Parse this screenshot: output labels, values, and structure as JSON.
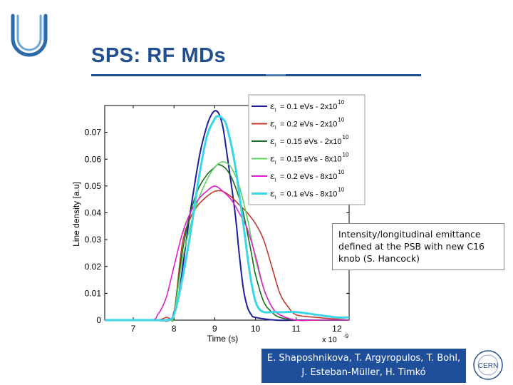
{
  "slide": {
    "title": "SPS: RF MDs",
    "note": "Intensity/longitudinal emittance defined at the PSB with new C16 knob (S. Hancock)",
    "authors_line1": "E. Shaposhnikova, T. Argyropulos, T. Bohl,",
    "authors_line2": "J. Esteban-Müller, H. Timkó",
    "logo_text": "CERN"
  },
  "chart_data": {
    "type": "line",
    "title": "",
    "xlabel": "Time (s)",
    "ylabel": "Line density [a.u]",
    "x_multiplier": "x 10",
    "x_multiplier_exp": "-9",
    "xlim": [
      6.3,
      12.3
    ],
    "ylim": [
      0,
      0.08
    ],
    "xticks": [
      "7",
      "8",
      "9",
      "10",
      "11",
      "12"
    ],
    "xtick_values": [
      7,
      8,
      9,
      10,
      11,
      12
    ],
    "yticks": [
      "0",
      "0.01",
      "0.02",
      "0.03",
      "0.04",
      "0.05",
      "0.06",
      "0.07"
    ],
    "ytick_values": [
      0,
      0.01,
      0.02,
      0.03,
      0.04,
      0.05,
      0.06,
      0.07
    ],
    "grid": false,
    "legend_position": "top-right",
    "series": [
      {
        "label_pre": "= 0.1 eVs - 2x10",
        "exp": "10",
        "color": "#1f1f9e",
        "x": [
          6.3,
          7.5,
          7.9,
          8.0,
          8.1,
          8.2,
          8.35,
          8.5,
          8.65,
          8.8,
          8.9,
          9.0,
          9.1,
          9.2,
          9.3,
          9.5,
          9.6,
          9.7,
          9.8,
          9.9,
          10.0,
          10.5,
          11.0,
          11.5,
          12.0,
          12.3
        ],
        "y": [
          0.0,
          0.0,
          0.0,
          0.003,
          0.008,
          0.018,
          0.035,
          0.05,
          0.063,
          0.072,
          0.076,
          0.078,
          0.077,
          0.072,
          0.062,
          0.04,
          0.025,
          0.012,
          0.005,
          0.002,
          0.001,
          0.0,
          0.0,
          0.0,
          0.0,
          0.0
        ]
      },
      {
        "label_pre": "= 0.2 eVs - 2x10",
        "exp": "10",
        "color": "#c0392b",
        "x": [
          6.3,
          7.5,
          7.8,
          8.0,
          8.2,
          8.4,
          8.6,
          8.8,
          9.0,
          9.2,
          9.4,
          9.6,
          9.8,
          10.0,
          10.2,
          10.4,
          10.6,
          10.8,
          11.0,
          11.5,
          12.3
        ],
        "y": [
          0.0,
          0.0,
          0.001,
          0.003,
          0.028,
          0.038,
          0.043,
          0.046,
          0.048,
          0.048,
          0.046,
          0.043,
          0.04,
          0.036,
          0.03,
          0.02,
          0.01,
          0.005,
          0.002,
          0.001,
          0.0
        ]
      },
      {
        "label_pre": "= 0.15 eVs - 2x10",
        "exp": "10",
        "color": "#1a6b1a",
        "x": [
          6.3,
          7.5,
          7.9,
          8.0,
          8.2,
          8.4,
          8.6,
          8.8,
          9.0,
          9.1,
          9.3,
          9.5,
          9.7,
          9.9,
          10.0,
          10.2,
          10.4,
          10.6,
          11.0,
          11.5,
          12.3
        ],
        "y": [
          0.0,
          0.0,
          0.0,
          0.002,
          0.025,
          0.04,
          0.049,
          0.054,
          0.057,
          0.058,
          0.056,
          0.05,
          0.04,
          0.025,
          0.017,
          0.007,
          0.003,
          0.001,
          0.0,
          0.0,
          0.0
        ]
      },
      {
        "label_pre": "= 0.15 eVs - 8x10",
        "exp": "10",
        "color": "#5fd35f",
        "x": [
          6.3,
          7.5,
          7.9,
          8.0,
          8.2,
          8.4,
          8.6,
          8.8,
          9.0,
          9.2,
          9.4,
          9.6,
          9.8,
          10.0,
          10.2,
          10.4,
          10.6,
          11.0,
          11.5,
          12.3
        ],
        "y": [
          0.0,
          0.0,
          0.0,
          0.002,
          0.022,
          0.035,
          0.045,
          0.052,
          0.057,
          0.059,
          0.057,
          0.05,
          0.038,
          0.023,
          0.012,
          0.005,
          0.002,
          0.0,
          0.0,
          0.0
        ]
      },
      {
        "label_pre": "= 0.2 eVs - 8x10",
        "exp": "10",
        "color": "#e020d0",
        "x": [
          6.3,
          7.4,
          7.6,
          7.8,
          8.0,
          8.2,
          8.4,
          8.6,
          8.8,
          9.0,
          9.2,
          9.4,
          9.6,
          9.8,
          10.0,
          10.2,
          10.4,
          10.6,
          11.0,
          11.5,
          12.3
        ],
        "y": [
          0.0,
          0.0,
          0.002,
          0.008,
          0.02,
          0.032,
          0.04,
          0.045,
          0.048,
          0.05,
          0.048,
          0.045,
          0.04,
          0.034,
          0.024,
          0.012,
          0.005,
          0.002,
          0.0,
          0.0,
          0.0
        ]
      },
      {
        "label_pre": "= 0.1 eVs - 8x10",
        "exp": "10",
        "color": "#3ad6e6",
        "x": [
          6.3,
          7.5,
          7.8,
          8.0,
          8.2,
          8.4,
          8.6,
          8.8,
          9.0,
          9.1,
          9.2,
          9.3,
          9.5,
          9.7,
          9.9,
          10.1,
          10.5,
          11.0,
          11.5,
          12.0,
          12.3
        ],
        "y": [
          0.0,
          0.0,
          0.0,
          0.002,
          0.015,
          0.032,
          0.052,
          0.068,
          0.075,
          0.076,
          0.075,
          0.072,
          0.058,
          0.036,
          0.014,
          0.004,
          0.003,
          0.003,
          0.002,
          0.001,
          0.001
        ]
      }
    ]
  }
}
